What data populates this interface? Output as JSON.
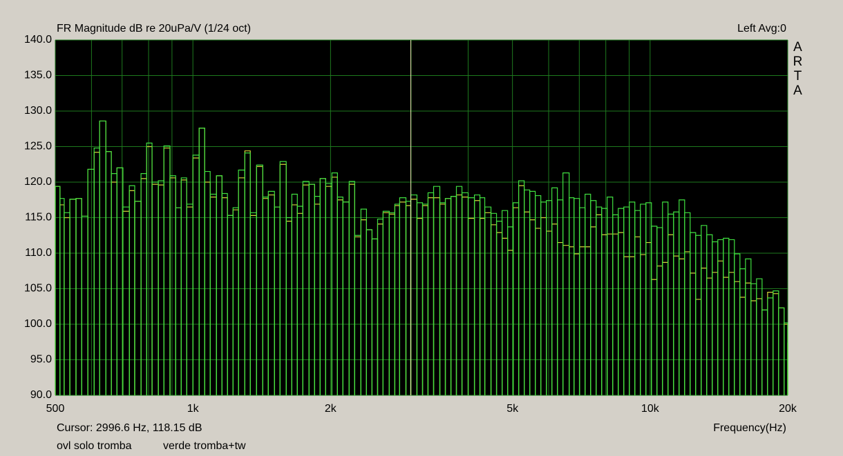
{
  "chart_data": {
    "type": "step-bar",
    "title": "FR Magnitude dB re 20uPa/V (1/24 oct)",
    "channel": "Left  Avg:0",
    "brand": "ARTA",
    "xlabel": "Frequency(Hz)",
    "log_x": true,
    "grid": true,
    "cursor": {
      "label": "Cursor:  2996.6 Hz, 118.15 dB",
      "x": 2996.6
    },
    "xlim": [
      500,
      20000
    ],
    "ylim": [
      90,
      140
    ],
    "xticks": [
      500,
      {
        "value": 1000,
        "label": "1k"
      },
      {
        "value": 2000,
        "label": "2k"
      },
      {
        "value": 5000,
        "label": "5k"
      },
      {
        "value": 10000,
        "label": "10k"
      },
      {
        "value": 20000,
        "label": "20k"
      }
    ],
    "xgrid_minor": [
      600,
      700,
      800,
      900,
      3000,
      4000,
      6000,
      7000,
      8000,
      9000
    ],
    "yticks": [
      {
        "value": 90,
        "label": "90.0"
      },
      {
        "value": 95,
        "label": "95.0"
      },
      {
        "value": 100,
        "label": "100.0"
      },
      {
        "value": 105,
        "label": "105.0"
      },
      {
        "value": 110,
        "label": "110.0"
      },
      {
        "value": 115,
        "label": "115.0"
      },
      {
        "value": 120,
        "label": "120.0"
      },
      {
        "value": 125,
        "label": "125.0"
      },
      {
        "value": 130,
        "label": "130.0"
      },
      {
        "value": 135,
        "label": "135.0"
      },
      {
        "value": 140,
        "label": "140.0"
      }
    ],
    "x": [
      500,
      512,
      523,
      538,
      555,
      571,
      589,
      608,
      625,
      645,
      663,
      682,
      703,
      726,
      746,
      770,
      792,
      814,
      840,
      864,
      891,
      917,
      943,
      969,
      1000,
      1032,
      1061,
      1091,
      1126,
      1158,
      1190,
      1224,
      1258,
      1299,
      1335,
      1378,
      1422,
      1462,
      1508,
      1551,
      1600,
      1646,
      1692,
      1740,
      1795,
      1846,
      1898,
      1952,
      2014,
      2071,
      2129,
      2197,
      2259,
      2331,
      2397,
      2465,
      2535,
      2606,
      2689,
      2765,
      2833,
      2924,
      2996,
      3091,
      3179,
      3268,
      3361,
      3468,
      3566,
      3667,
      3770,
      3877,
      4000,
      4128,
      4244,
      4349,
      4487,
      4614,
      4745,
      4879,
      5017,
      5158,
      5304,
      5454,
      5608,
      5767,
      5930,
      6097,
      6269,
      6447,
      6652,
      6816,
      7009,
      7207,
      7411,
      7620,
      7835,
      8057,
      8284,
      8518,
      8759,
      9006,
      9260,
      9522,
      9791,
      10068,
      10352,
      10645,
      10945,
      11255,
      11573,
      11900,
      12236,
      12581,
      12937,
      13302,
      13678,
      14064,
      14462,
      14870,
      15290,
      15722,
      16167,
      16623,
      17093,
      17576,
      18072,
      18583,
      19108,
      19648,
      20000
    ],
    "series": [
      {
        "name": "ovl solo tromba",
        "color": "#d6d63a",
        "values": [
          119.4,
          116.8,
          115.0,
          117.6,
          117.7,
          115.2,
          121.8,
          124.2,
          128.6,
          124.3,
          120.0,
          122.0,
          115.9,
          118.8,
          117.3,
          120.5,
          125.0,
          119.7,
          119.6,
          124.8,
          120.6,
          116.4,
          120.3,
          116.5,
          123.4,
          127.6,
          120.0,
          117.9,
          120.9,
          117.8,
          115.3,
          116.1,
          120.6,
          124.4,
          115.3,
          122.2,
          117.7,
          118.2,
          116.5,
          122.5,
          114.5,
          116.8,
          115.6,
          119.6,
          119.7,
          116.9,
          120.5,
          119.4,
          120.7,
          117.5,
          117.2,
          119.7,
          112.3,
          114.7,
          113.3,
          112.0,
          114.1,
          115.7,
          115.5,
          116.7,
          117.2,
          116.7,
          117.6,
          114.9,
          116.7,
          117.8,
          117.8,
          116.9,
          117.7,
          118.0,
          118.2,
          117.9,
          114.9,
          117.4,
          114.9,
          115.7,
          114.0,
          112.9,
          112.1,
          110.4,
          116.4,
          119.5,
          115.8,
          114.7,
          113.5,
          115.0,
          113.1,
          114.1,
          111.5,
          111.1,
          110.9,
          109.9,
          110.9,
          110.9,
          113.7,
          115.4,
          112.6,
          112.7,
          112.7,
          112.9,
          109.5,
          109.5,
          112.3,
          109.8,
          111.5,
          106.3,
          108.2,
          108.7,
          112.6,
          109.6,
          109.2,
          110.2,
          107.2,
          103.5,
          107.9,
          106.5,
          107.3,
          108.9,
          106.6,
          107.3,
          106.0,
          103.8,
          105.8,
          103.3,
          103.6,
          102.0,
          104.5,
          104.3,
          102.3,
          100.0,
          97.4
        ]
      },
      {
        "name": "verde tromba+tw",
        "color": "#40e040",
        "values": [
          119.4,
          117.7,
          115.7,
          117.6,
          117.7,
          115.2,
          121.8,
          124.8,
          128.6,
          124.3,
          121.2,
          122.0,
          116.5,
          119.5,
          117.3,
          121.2,
          125.5,
          120.0,
          120.2,
          125.1,
          120.9,
          116.4,
          120.6,
          116.9,
          123.8,
          127.6,
          121.5,
          118.3,
          120.9,
          118.4,
          115.3,
          116.4,
          121.7,
          124.1,
          115.7,
          122.4,
          117.9,
          118.7,
          116.5,
          122.9,
          115.0,
          118.3,
          116.6,
          120.1,
          119.7,
          118.0,
          120.5,
          119.8,
          121.3,
          117.9,
          117.2,
          120.1,
          112.5,
          116.2,
          113.3,
          112.0,
          114.8,
          115.9,
          115.7,
          116.9,
          117.8,
          117.3,
          118.2,
          117.1,
          116.9,
          118.5,
          119.4,
          117.1,
          117.7,
          118.0,
          119.4,
          118.5,
          117.8,
          118.2,
          117.8,
          116.5,
          115.6,
          114.5,
          116.0,
          113.7,
          117.1,
          120.2,
          118.9,
          118.7,
          118.1,
          117.2,
          117.4,
          119.2,
          117.5,
          121.3,
          117.8,
          117.7,
          116.4,
          118.3,
          117.4,
          116.5,
          116.3,
          117.9,
          115.4,
          116.3,
          116.5,
          117.2,
          116.0,
          116.9,
          117.1,
          113.8,
          113.6,
          117.2,
          115.5,
          115.8,
          117.5,
          115.7,
          112.9,
          112.5,
          113.9,
          112.6,
          111.6,
          111.9,
          112.1,
          111.9,
          109.9,
          107.8,
          109.2,
          105.7,
          106.4,
          102.0,
          103.7,
          104.7,
          102.3,
          100.2,
          97.4
        ]
      }
    ]
  }
}
